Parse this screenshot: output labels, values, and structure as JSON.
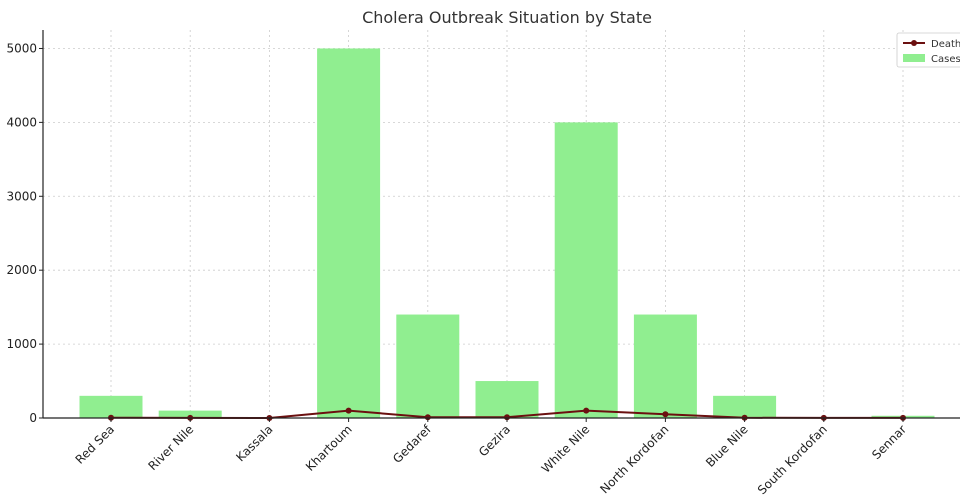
{
  "chart_data": {
    "type": "bar",
    "title": "Cholera Outbreak Situation by State",
    "categories": [
      "Red Sea",
      "River Nile",
      "Kassala",
      "Khartoum",
      "Gedaref",
      "Gezira",
      "White Nile",
      "North Kordofan",
      "Blue Nile",
      "South Kordofan",
      "Sennar"
    ],
    "series": [
      {
        "name": "Cases",
        "kind": "bar",
        "color": "#90ee90",
        "values": [
          300,
          100,
          0,
          5000,
          1400,
          500,
          4000,
          1400,
          300,
          0,
          30
        ]
      },
      {
        "name": "Deaths",
        "kind": "line",
        "color": "#6b1010",
        "values": [
          3,
          1,
          0,
          100,
          10,
          10,
          100,
          50,
          3,
          1,
          1
        ]
      }
    ],
    "yticks": [
      0,
      1000,
      2000,
      3000,
      4000,
      5000
    ],
    "ylim": [
      0,
      5250
    ],
    "grid": true,
    "legend_position": "top-right"
  },
  "legend": {
    "deaths_label": "Deaths",
    "cases_label": "Cases"
  }
}
